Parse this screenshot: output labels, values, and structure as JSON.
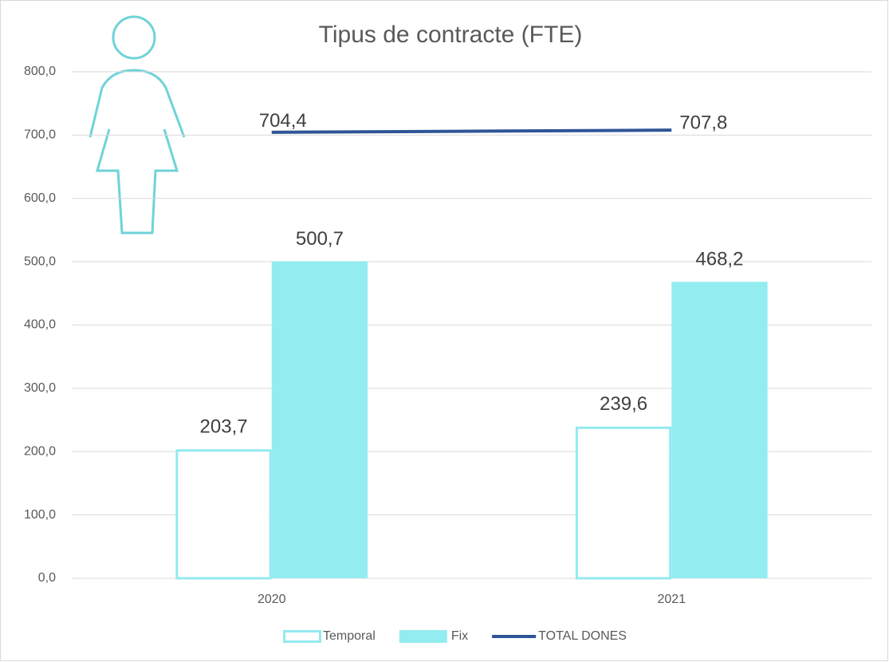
{
  "chart_data": {
    "type": "bar",
    "title": "Tipus de contracte (FTE)",
    "categories": [
      "2020",
      "2021"
    ],
    "series": [
      {
        "name": "Temporal",
        "type": "bar",
        "style": "outline",
        "color": "#93eaf0",
        "values": [
          203.7,
          239.6
        ],
        "value_labels": [
          "203,7",
          "239,6"
        ]
      },
      {
        "name": "Fix",
        "type": "bar",
        "color": "#93ecf0",
        "values": [
          500.7,
          468.2
        ],
        "value_labels": [
          "500,7",
          "468,2"
        ]
      },
      {
        "name": "TOTAL DONES",
        "type": "line",
        "color": "#2f5597",
        "values": [
          704.4,
          707.8
        ],
        "value_labels": [
          "704,4",
          "707,8"
        ]
      }
    ],
    "ylim": [
      0,
      800
    ],
    "yticks": [
      {
        "value": 0,
        "label": "0,0"
      },
      {
        "value": 100,
        "label": "100,0"
      },
      {
        "value": 200,
        "label": "200,0"
      },
      {
        "value": 300,
        "label": "300,0"
      },
      {
        "value": 400,
        "label": "400,0"
      },
      {
        "value": 500,
        "label": "500,0"
      },
      {
        "value": 600,
        "label": "600,0"
      },
      {
        "value": 700,
        "label": "700,0"
      },
      {
        "value": 800,
        "label": "800,0"
      }
    ],
    "grid": true,
    "legend": "bottom"
  }
}
